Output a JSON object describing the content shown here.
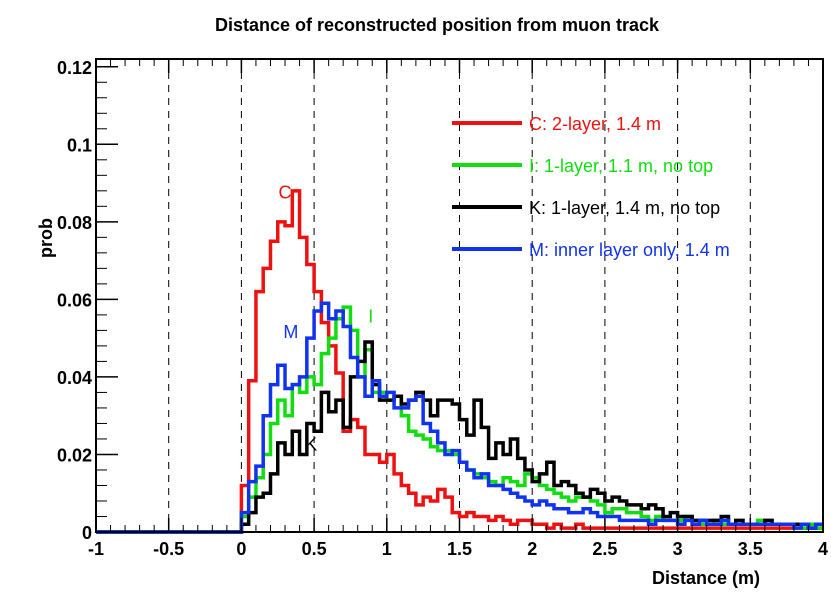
{
  "chart_data": {
    "type": "line",
    "title": "Distance of reconstructed position from muon track",
    "xlabel": "Distance (m)",
    "ylabel": "prob",
    "xlim": [
      -1,
      4
    ],
    "ylim": [
      0,
      0.122
    ],
    "x_ticks": [
      -1,
      -0.5,
      0,
      0.5,
      1,
      1.5,
      2,
      2.5,
      3,
      3.5,
      4
    ],
    "x_tick_labels": [
      "-1",
      "-0.5",
      "0",
      "0.5",
      "1",
      "1.5",
      "2",
      "2.5",
      "3",
      "3.5",
      "4"
    ],
    "y_ticks": [
      0,
      0.02,
      0.04,
      0.06,
      0.08,
      0.1,
      0.12
    ],
    "y_tick_labels": [
      "0",
      "0.02",
      "0.04",
      "0.06",
      "0.08",
      "0.1",
      "0.12"
    ],
    "grid": "vertical dashed at major x ticks",
    "legend_position": "top-right",
    "bin_edges_start": -1.0,
    "bin_width": 0.05,
    "series": [
      {
        "name": "C: 2-layer, 1.4 m",
        "label": "C",
        "color": "#ee1111",
        "values": [
          0,
          0,
          0,
          0,
          0,
          0,
          0,
          0,
          0,
          0,
          0,
          0,
          0,
          0,
          0,
          0,
          0,
          0,
          0,
          0,
          0.012,
          0.039,
          0.062,
          0.068,
          0.075,
          0.08,
          0.079,
          0.088,
          0.076,
          0.069,
          0.062,
          0.054,
          0.048,
          0.041,
          0.026,
          0.029,
          0.027,
          0.02,
          0.02,
          0.018,
          0.02,
          0.015,
          0.012,
          0.01,
          0.007,
          0.009,
          0.008,
          0.011,
          0.009,
          0.005,
          0.004,
          0.005,
          0.004,
          0.004,
          0.003,
          0.004,
          0.003,
          0.002,
          0.003,
          0.003,
          0.002,
          0.002,
          0.001,
          0.002,
          0.001,
          0.001,
          0.002,
          0.001,
          0.001,
          0.001,
          0.001,
          0.001,
          0.001,
          0.001,
          0.001,
          0.001,
          0.001,
          0.001,
          0.001,
          0.001,
          0.001,
          0.001,
          0.001,
          0.001,
          0.001,
          0.001,
          0.001,
          0.001,
          0.001,
          0.001,
          0.001,
          0.001,
          0.001,
          0.001,
          0.001,
          0.001,
          0.001,
          0.001,
          0.001,
          0.001
        ]
      },
      {
        "name": "I: 1-layer, 1.1 m, no top",
        "label": "I",
        "color": "#11dd11",
        "values": [
          0,
          0,
          0,
          0,
          0,
          0,
          0,
          0,
          0,
          0,
          0,
          0,
          0,
          0,
          0,
          0,
          0,
          0,
          0,
          0,
          0.004,
          0.009,
          0.014,
          0.02,
          0.028,
          0.034,
          0.03,
          0.038,
          0.036,
          0.04,
          0.038,
          0.046,
          0.05,
          0.055,
          0.058,
          0.052,
          0.04,
          0.047,
          0.036,
          0.036,
          0.034,
          0.035,
          0.03,
          0.026,
          0.025,
          0.024,
          0.022,
          0.021,
          0.021,
          0.02,
          0.018,
          0.016,
          0.015,
          0.014,
          0.013,
          0.012,
          0.014,
          0.013,
          0.012,
          0.015,
          0.014,
          0.012,
          0.011,
          0.01,
          0.009,
          0.008,
          0.009,
          0.009,
          0.008,
          0.007,
          0.005,
          0.006,
          0.006,
          0.005,
          0.005,
          0.004,
          0.003,
          0.004,
          0.003,
          0.003,
          0.003,
          0.004,
          0.002,
          0.002,
          0.002,
          0.003,
          0.002,
          0.002,
          0.002,
          0.002,
          0.002,
          0.003,
          0.002,
          0.002,
          0.002,
          0.002,
          0.002,
          0.001,
          0.002,
          0.001
        ]
      },
      {
        "name": "K: 1-layer, 1.4 m, no top",
        "label": "K",
        "color": "#000000",
        "values": [
          0,
          0,
          0,
          0,
          0,
          0,
          0,
          0,
          0,
          0,
          0,
          0,
          0,
          0,
          0,
          0,
          0,
          0,
          0,
          0,
          0.002,
          0.005,
          0.009,
          0.01,
          0.015,
          0.023,
          0.02,
          0.026,
          0.02,
          0.028,
          0.026,
          0.036,
          0.031,
          0.034,
          0.027,
          0.04,
          0.044,
          0.049,
          0.038,
          0.034,
          0.034,
          0.035,
          0.033,
          0.034,
          0.036,
          0.034,
          0.03,
          0.034,
          0.034,
          0.033,
          0.029,
          0.025,
          0.034,
          0.027,
          0.019,
          0.023,
          0.02,
          0.024,
          0.019,
          0.016,
          0.013,
          0.015,
          0.018,
          0.012,
          0.013,
          0.012,
          0.01,
          0.009,
          0.011,
          0.01,
          0.008,
          0.009,
          0.008,
          0.007,
          0.007,
          0.006,
          0.007,
          0.006,
          0.004,
          0.005,
          0.004,
          0.004,
          0.003,
          0.003,
          0.003,
          0.003,
          0.004,
          0.002,
          0.003,
          0.002,
          0.002,
          0.002,
          0.003,
          0.002,
          0.002,
          0.002,
          0.002,
          0.002,
          0.001,
          0.002
        ]
      },
      {
        "name": "M: inner layer only, 1.4 m",
        "label": "M",
        "color": "#1133ee",
        "values": [
          0,
          0,
          0,
          0,
          0,
          0,
          0,
          0,
          0,
          0,
          0,
          0,
          0,
          0,
          0,
          0,
          0,
          0,
          0,
          0,
          0.005,
          0.013,
          0.017,
          0.03,
          0.038,
          0.043,
          0.037,
          0.038,
          0.04,
          0.05,
          0.057,
          0.059,
          0.055,
          0.057,
          0.053,
          0.045,
          0.04,
          0.035,
          0.039,
          0.035,
          0.036,
          0.032,
          0.032,
          0.034,
          0.035,
          0.028,
          0.026,
          0.023,
          0.02,
          0.021,
          0.018,
          0.016,
          0.014,
          0.015,
          0.012,
          0.012,
          0.011,
          0.01,
          0.009,
          0.008,
          0.007,
          0.008,
          0.007,
          0.006,
          0.006,
          0.005,
          0.005,
          0.006,
          0.005,
          0.004,
          0.004,
          0.004,
          0.003,
          0.003,
          0.003,
          0.003,
          0.002,
          0.003,
          0.003,
          0.003,
          0.002,
          0.003,
          0.002,
          0.003,
          0.002,
          0.002,
          0.003,
          0.002,
          0.002,
          0.002,
          0.002,
          0.002,
          0.002,
          0.002,
          0.002,
          0.002,
          0.001,
          0.002,
          0.001,
          0.002
        ]
      }
    ],
    "curve_annotations": [
      {
        "text": "C",
        "x": 0.3,
        "y": 0.086,
        "color": "#ee1111"
      },
      {
        "text": "I",
        "x": 0.89,
        "y": 0.054,
        "color": "#11dd11"
      },
      {
        "text": "M",
        "x": 0.34,
        "y": 0.05,
        "color": "#1133ee"
      },
      {
        "text": "K",
        "x": 0.48,
        "y": 0.021,
        "color": "#000000"
      }
    ]
  }
}
